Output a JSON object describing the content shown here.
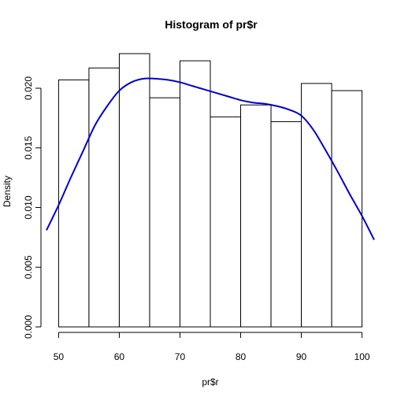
{
  "chart_data": {
    "type": "bar",
    "title": "Histogram of pr$r",
    "xlabel": "pr$r",
    "ylabel": "Density",
    "xlim": [
      48,
      102
    ],
    "ylim": [
      0,
      0.0235
    ],
    "x_ticks": [
      "50",
      "60",
      "70",
      "80",
      "90",
      "100"
    ],
    "x_tick_values": [
      50,
      60,
      70,
      80,
      90,
      100
    ],
    "y_ticks": [
      "0.000",
      "0.005",
      "0.010",
      "0.015",
      "0.020"
    ],
    "y_tick_values": [
      0,
      0.005,
      0.01,
      0.015,
      0.02
    ],
    "bins": [
      {
        "from": 50,
        "to": 55,
        "density": 0.0207
      },
      {
        "from": 55,
        "to": 60,
        "density": 0.0217
      },
      {
        "from": 60,
        "to": 65,
        "density": 0.0229
      },
      {
        "from": 65,
        "to": 70,
        "density": 0.0192
      },
      {
        "from": 70,
        "to": 75,
        "density": 0.0223
      },
      {
        "from": 75,
        "to": 80,
        "density": 0.0176
      },
      {
        "from": 80,
        "to": 85,
        "density": 0.0186
      },
      {
        "from": 85,
        "to": 90,
        "density": 0.0172
      },
      {
        "from": 90,
        "to": 95,
        "density": 0.0204
      },
      {
        "from": 95,
        "to": 100,
        "density": 0.0198
      }
    ],
    "density_curve": {
      "color": "#0000cd",
      "x": [
        48,
        50,
        52,
        54,
        56,
        58,
        60,
        62,
        64,
        66,
        68,
        70,
        72,
        74,
        76,
        78,
        80,
        82,
        84,
        86,
        88,
        90,
        92,
        94,
        96,
        98,
        100,
        102
      ],
      "y": [
        0.0081,
        0.0102,
        0.0125,
        0.0147,
        0.0169,
        0.0185,
        0.0198,
        0.0205,
        0.0208,
        0.0208,
        0.0207,
        0.0205,
        0.0202,
        0.0199,
        0.0196,
        0.0193,
        0.019,
        0.0188,
        0.0187,
        0.0185,
        0.0182,
        0.0177,
        0.0165,
        0.0148,
        0.013,
        0.0111,
        0.0093,
        0.0073
      ]
    },
    "grid": false,
    "legend": "none"
  }
}
